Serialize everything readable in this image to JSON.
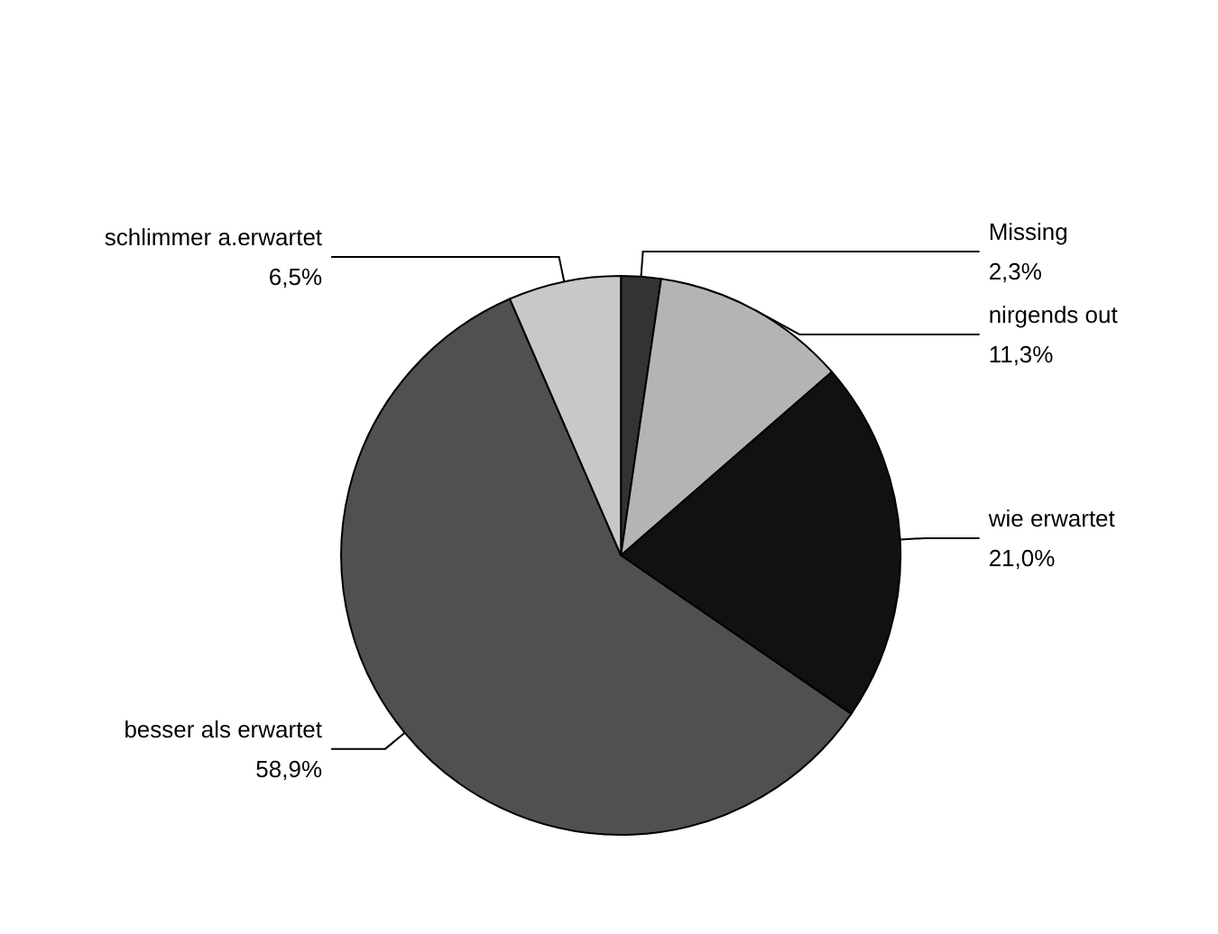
{
  "chart_data": {
    "type": "pie",
    "categories": [
      "Missing",
      "nirgends out",
      "wie erwartet",
      "besser als erwartet",
      "schlimmer a.erwartet"
    ],
    "values": [
      2.3,
      11.3,
      21.0,
      58.9,
      6.5
    ],
    "value_labels": [
      "2,3%",
      "11,3%",
      "21,0%",
      "58,9%",
      "6,5%"
    ],
    "colors": [
      "#333333",
      "#b4b4b4",
      "#111111",
      "#505050",
      "#c8c8c8"
    ],
    "legend": false
  }
}
